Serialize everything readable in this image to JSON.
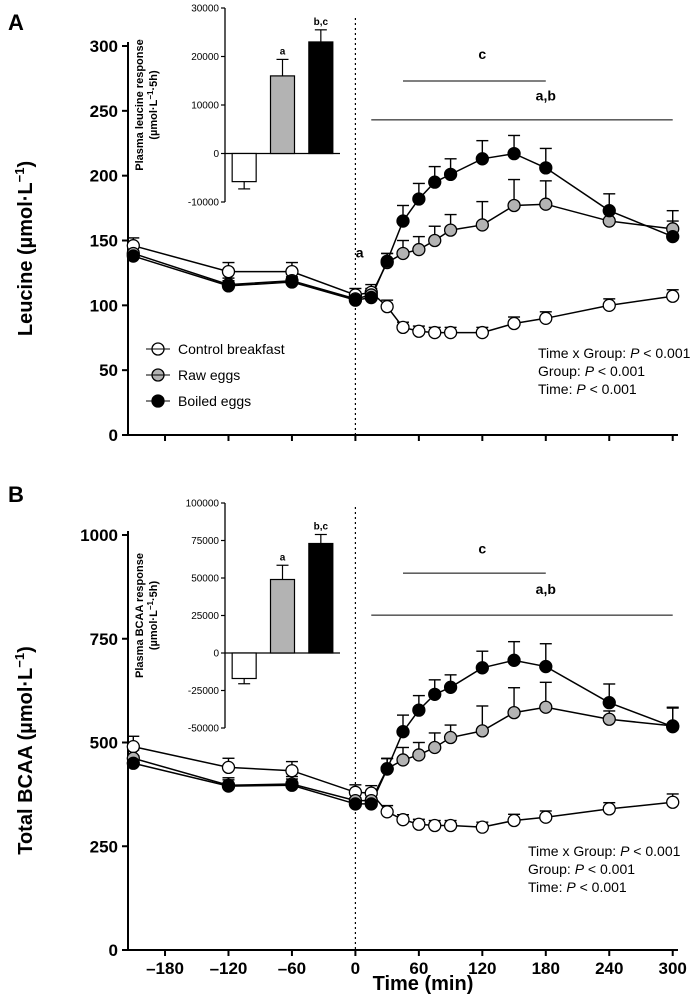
{
  "x_axis": {
    "label": "Time (min)",
    "ticks": [
      -180,
      -120,
      -60,
      0,
      60,
      120,
      180,
      240,
      300
    ],
    "tick_labels": [
      "–180",
      "–120",
      "–60",
      "0",
      "60",
      "120",
      "180",
      "240",
      "300"
    ]
  },
  "legend": [
    {
      "name": "Control breakfast",
      "fill": "#ffffff"
    },
    {
      "name": "Raw eggs",
      "fill": "#b3b3b3"
    },
    {
      "name": "Boiled eggs",
      "fill": "#000000"
    }
  ],
  "chart_data": [
    {
      "panel_label": "A",
      "type": "line",
      "ylabel": "Leucine (µmol·L⁻¹)",
      "ylim": [
        0,
        300
      ],
      "yticks": [
        0,
        50,
        100,
        150,
        200,
        250,
        300
      ],
      "xlim": [
        -215,
        305
      ],
      "x": [
        -210,
        -120,
        -60,
        0,
        15,
        30,
        45,
        60,
        75,
        90,
        120,
        150,
        180,
        240,
        300
      ],
      "series": [
        {
          "name": "Control breakfast",
          "values": [
            146,
            126,
            126,
            108,
            110,
            99,
            83,
            80,
            79,
            79,
            79,
            86,
            90,
            100,
            107
          ],
          "errors": [
            6,
            7,
            7,
            5,
            6,
            5,
            4,
            4,
            4,
            4,
            4,
            5,
            5,
            5,
            5
          ]
        },
        {
          "name": "Raw eggs",
          "values": [
            140,
            116,
            119,
            105,
            108,
            133,
            140,
            143,
            150,
            158,
            162,
            177,
            178,
            165,
            159
          ],
          "errors": [
            5,
            5,
            5,
            5,
            5,
            7,
            10,
            10,
            11,
            12,
            18,
            20,
            18,
            9,
            14
          ]
        },
        {
          "name": "Boiled eggs",
          "values": [
            138,
            115,
            118,
            104,
            106,
            134,
            165,
            182,
            195,
            201,
            213,
            217,
            206,
            173,
            153
          ],
          "errors": [
            4,
            4,
            4,
            4,
            5,
            6,
            12,
            12,
            12,
            12,
            14,
            14,
            15,
            13,
            12
          ]
        }
      ],
      "annotations": [
        {
          "text": "a",
          "x": 4,
          "y": 137
        },
        {
          "text": "c",
          "x": 120,
          "y": 290
        },
        {
          "text": "a,b",
          "x": 180,
          "y": 258
        }
      ],
      "significance_lines": [
        {
          "label": "c",
          "x_start": 45,
          "x_end": 180,
          "y": 273
        },
        {
          "label": "a,b",
          "x_start": 15,
          "x_end": 300,
          "y": 243
        }
      ],
      "stats": [
        "Time x Group: ",
        "Group: ",
        "Time: "
      ],
      "stats_p": [
        "P",
        "P",
        "P"
      ],
      "stats_value": [
        " < 0.001",
        " < 0.001",
        " < 0.001"
      ],
      "inset": {
        "type": "bar",
        "ylabel_line1": "Plasma leucine response",
        "ylabel_line2": "(µmol·L⁻¹·5h)",
        "ylim": [
          -10000,
          30000
        ],
        "yticks": [
          -10000,
          0,
          10000,
          20000,
          30000
        ],
        "categories": [
          "Control breakfast",
          "Raw eggs",
          "Boiled eggs"
        ],
        "values": [
          -5800,
          16000,
          23000
        ],
        "errors": [
          1500,
          3400,
          2500
        ],
        "labels": [
          "",
          "a",
          "b,c"
        ]
      }
    },
    {
      "panel_label": "B",
      "type": "line",
      "ylabel": "Total BCAA (µmol·L⁻¹)",
      "ylim": [
        0,
        1000
      ],
      "yticks": [
        0,
        250,
        500,
        750,
        1000
      ],
      "xlim": [
        -215,
        305
      ],
      "x": [
        -210,
        -120,
        -60,
        0,
        15,
        30,
        45,
        60,
        75,
        90,
        120,
        150,
        180,
        240,
        300
      ],
      "series": [
        {
          "name": "Control breakfast",
          "values": [
            490,
            440,
            432,
            380,
            378,
            333,
            314,
            303,
            300,
            300,
            296,
            312,
            320,
            340,
            356
          ],
          "errors": [
            25,
            22,
            22,
            18,
            18,
            15,
            12,
            12,
            12,
            12,
            12,
            15,
            15,
            15,
            20
          ]
        },
        {
          "name": "Raw eggs",
          "values": [
            462,
            397,
            400,
            360,
            360,
            437,
            458,
            470,
            488,
            512,
            528,
            572,
            585,
            556,
            540
          ],
          "errors": [
            20,
            18,
            18,
            15,
            15,
            25,
            30,
            30,
            35,
            30,
            60,
            60,
            60,
            20,
            45
          ]
        },
        {
          "name": "Boiled eggs",
          "values": [
            450,
            395,
            397,
            352,
            352,
            436,
            526,
            578,
            616,
            633,
            680,
            698,
            683,
            596,
            538
          ],
          "errors": [
            18,
            15,
            15,
            15,
            15,
            25,
            40,
            35,
            35,
            30,
            40,
            45,
            55,
            45,
            45
          ]
        }
      ],
      "annotations": [
        {
          "text": "c",
          "x": 120,
          "y": 955
        },
        {
          "text": "a,b",
          "x": 180,
          "y": 858
        }
      ],
      "significance_lines": [
        {
          "label": "c",
          "x_start": 45,
          "x_end": 180,
          "y": 908
        },
        {
          "label": "a,b",
          "x_start": 15,
          "x_end": 300,
          "y": 807
        }
      ],
      "stats": [
        "Time x Group: ",
        "Group: ",
        "Time: "
      ],
      "stats_p": [
        "P",
        "P",
        "P"
      ],
      "stats_value": [
        " < 0.001",
        " < 0.001",
        " < 0.001"
      ],
      "inset": {
        "type": "bar",
        "ylabel_line1": "Plasma BCAA response",
        "ylabel_line2": "(µmol·L⁻¹·5h)",
        "ylim": [
          -50000,
          100000
        ],
        "yticks": [
          -50000,
          -25000,
          0,
          25000,
          50000,
          75000,
          100000
        ],
        "categories": [
          "Control breakfast",
          "Raw eggs",
          "Boiled eggs"
        ],
        "values": [
          -17000,
          49000,
          73000
        ],
        "errors": [
          3500,
          9500,
          6000
        ],
        "labels": [
          "",
          "a",
          "b,c"
        ]
      }
    }
  ]
}
